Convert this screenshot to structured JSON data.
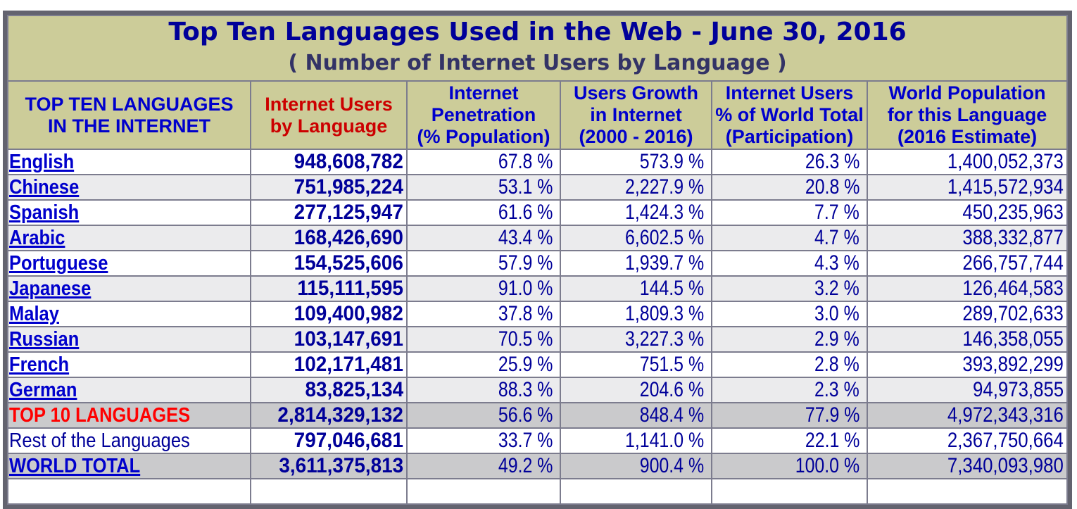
{
  "header": {
    "title": "Top Ten Languages Used in the Web - June 30, 2016",
    "subtitle": "( Number of Internet Users by Language )"
  },
  "columns": [
    {
      "id": "languages",
      "label": "TOP TEN LANGUAGES\nIN THE INTERNET",
      "color": "blue"
    },
    {
      "id": "users",
      "label": "Internet Users\nby Language",
      "color": "red"
    },
    {
      "id": "penetration",
      "label": "Internet\nPenetration\n(% Population)",
      "color": "blue"
    },
    {
      "id": "growth",
      "label": "Users Growth\nin Internet\n(2000 - 2016)",
      "color": "blue"
    },
    {
      "id": "share",
      "label": "Internet Users\n% of World Total\n(Participation)",
      "color": "blue"
    },
    {
      "id": "population",
      "label": "World Population\nfor this Language\n(2016 Estimate)",
      "color": "blue"
    }
  ],
  "rows": [
    {
      "label": "English",
      "link": true,
      "bg": "white",
      "users": "948,608,782",
      "penetration": "67.8 %",
      "growth": "573.9 %",
      "share": "26.3 %",
      "population": "1,400,052,373"
    },
    {
      "label": "Chinese",
      "link": true,
      "bg": "stripe",
      "users": "751,985,224",
      "penetration": "53.1 %",
      "growth": "2,227.9 %",
      "share": "20.8 %",
      "population": "1,415,572,934"
    },
    {
      "label": "Spanish",
      "link": true,
      "bg": "white",
      "users": "277,125,947",
      "penetration": "61.6 %",
      "growth": "1,424.3 %",
      "share": "7.7 %",
      "population": "450,235,963"
    },
    {
      "label": "Arabic",
      "link": true,
      "bg": "stripe",
      "users": "168,426,690",
      "penetration": "43.4 %",
      "growth": "6,602.5 %",
      "share": "4.7 %",
      "population": "388,332,877"
    },
    {
      "label": "Portuguese",
      "link": true,
      "bg": "white",
      "users": "154,525,606",
      "penetration": "57.9 %",
      "growth": "1,939.7 %",
      "share": "4.3 %",
      "population": "266,757,744"
    },
    {
      "label": "Japanese",
      "link": true,
      "bg": "stripe",
      "users": "115,111,595",
      "penetration": "91.0 %",
      "growth": "144.5 %",
      "share": "3.2 %",
      "population": "126,464,583"
    },
    {
      "label": "Malay",
      "link": true,
      "bg": "white",
      "users": "109,400,982",
      "penetration": "37.8 %",
      "growth": "1,809.3 %",
      "share": "3.0 %",
      "population": "289,702,633"
    },
    {
      "label": "Russian",
      "link": true,
      "bg": "stripe",
      "users": "103,147,691",
      "penetration": "70.5 %",
      "growth": "3,227.3 %",
      "share": "2.9 %",
      "population": "146,358,055"
    },
    {
      "label": "French",
      "link": true,
      "bg": "white",
      "users": "102,171,481",
      "penetration": "25.9 %",
      "growth": "751.5 %",
      "share": "2.8 %",
      "population": "393,892,299"
    },
    {
      "label": "German",
      "link": true,
      "bg": "stripe",
      "users": "83,825,134",
      "penetration": "88.3 %",
      "growth": "204.6 %",
      "share": "2.3 %",
      "population": "94,973,855"
    },
    {
      "label": "TOP 10 LANGUAGES",
      "link": false,
      "label_style": "red",
      "bg": "summary",
      "users": "2,814,329,132",
      "penetration": "56.6 %",
      "growth": "848.4 %",
      "share": "77.9 %",
      "population": "4,972,343,316"
    },
    {
      "label": "Rest of the Languages",
      "link": false,
      "label_style": "plain",
      "bg": "white",
      "users": "797,046,681",
      "penetration": "33.7 %",
      "growth": "1,141.0 %",
      "share": "22.1 %",
      "population": "2,367,750,664"
    },
    {
      "label": "WORLD TOTAL",
      "link": true,
      "bg": "summary",
      "users": "3,611,375,813",
      "penetration": "49.2 %",
      "growth": "900.4 %",
      "share": "100.0 %",
      "population": "7,340,093,980"
    }
  ],
  "colors": {
    "tan": "#CCCC99",
    "stripe": "#EBEBED",
    "summary": "#CACACC",
    "border": "#7C7C8E",
    "outer_border": "#63636F",
    "title_blue": "#000099",
    "subtitle_blue": "#333366",
    "header_blue": "#0000CC",
    "header_red": "#CC0000",
    "link_blue": "#0000CC",
    "value_navy": "#000099",
    "top10_red": "#FF0000"
  }
}
